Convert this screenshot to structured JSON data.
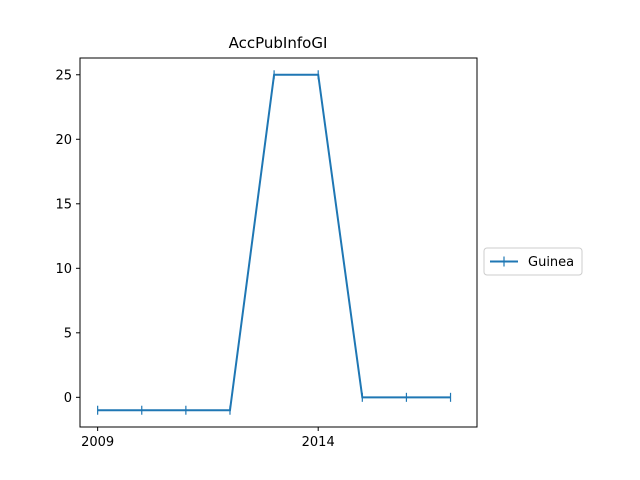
{
  "chart_data": {
    "type": "line",
    "title": "AccPubInfoGI",
    "xlabel": "",
    "ylabel": "",
    "x": [
      2009,
      2010,
      2011,
      2012,
      2013,
      2014,
      2015,
      2016,
      2017
    ],
    "series": [
      {
        "name": "Guinea",
        "values": [
          -1,
          -1,
          -1,
          -1,
          25,
          25,
          0,
          0,
          0
        ],
        "color": "#1f77b4",
        "marker": "|"
      }
    ],
    "xlim": [
      2008.6,
      2017.6
    ],
    "ylim": [
      -2.3,
      26.3
    ],
    "xticks": [
      2009,
      2014
    ],
    "yticks": [
      0,
      5,
      10,
      15,
      20,
      25
    ],
    "grid": false,
    "legend_position": "right"
  }
}
